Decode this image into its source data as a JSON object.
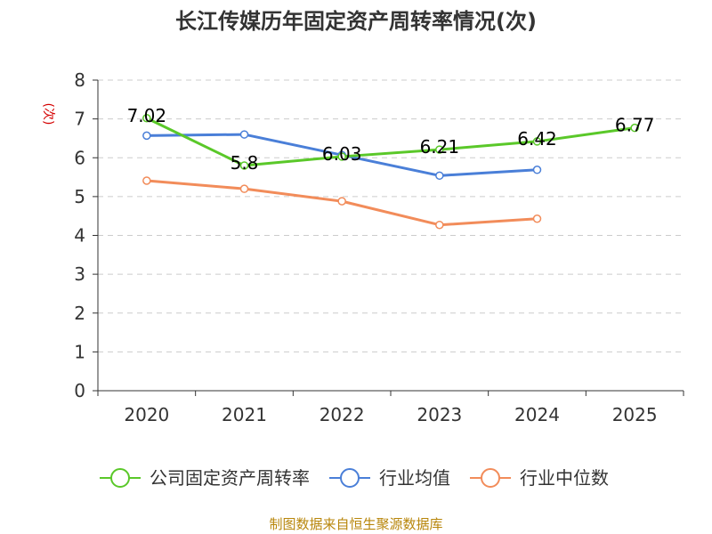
{
  "chart_data": {
    "type": "line",
    "title": "长江传媒历年固定资产周转率情况(次)",
    "ylabel": "(次)",
    "xlabel": "",
    "categories": [
      "2020",
      "2021",
      "2022",
      "2023",
      "2024",
      "2025"
    ],
    "ylim": [
      0,
      8
    ],
    "yticks": [
      "0",
      "1",
      "2",
      "3",
      "4",
      "5",
      "6",
      "7",
      "8"
    ],
    "grid": true,
    "legend_position": "bottom",
    "series": [
      {
        "name": "公司固定资产周转率",
        "color": "#5ac829",
        "values": [
          7.02,
          5.8,
          6.03,
          6.21,
          6.42,
          6.77
        ],
        "labels": [
          "7.02",
          "5.8",
          "6.03",
          "6.21",
          "6.42",
          "6.77"
        ]
      },
      {
        "name": "行业均值",
        "color": "#4a7fd8",
        "values": [
          6.57,
          6.6,
          6.07,
          5.54,
          5.69,
          null
        ]
      },
      {
        "name": "行业中位数",
        "color": "#f28c5a",
        "values": [
          5.41,
          5.2,
          4.88,
          4.27,
          4.43,
          null
        ]
      }
    ]
  },
  "footer": {
    "source": "制图数据来自恒生聚源数据库"
  }
}
